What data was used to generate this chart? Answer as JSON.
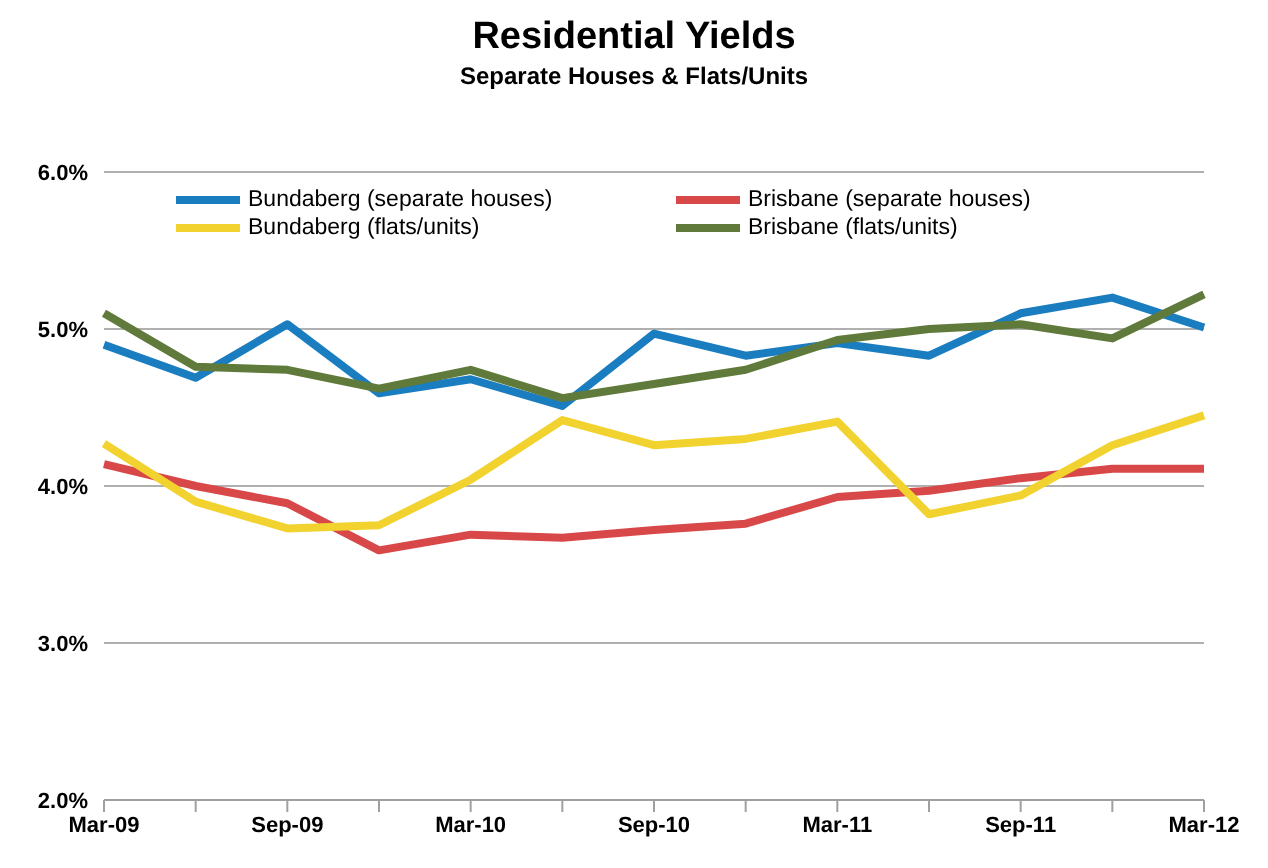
{
  "chart_data": {
    "type": "line",
    "title": "Residential Yields",
    "subtitle": "Separate Houses & Flats/Units",
    "categories": [
      "Mar-09",
      null,
      "Sep-09",
      null,
      "Mar-10",
      null,
      "Sep-10",
      null,
      "Mar-11",
      null,
      "Sep-11",
      null,
      "Mar-12"
    ],
    "series": [
      {
        "name": "Bundaberg (separate houses)",
        "color": "#1a7dc0",
        "values": [
          4.9,
          4.69,
          5.03,
          4.59,
          4.68,
          4.51,
          4.97,
          4.83,
          4.91,
          4.83,
          5.1,
          5.2,
          5.01
        ]
      },
      {
        "name": "Brisbane (separate houses)",
        "color": "#d94848",
        "values": [
          4.14,
          4.0,
          3.89,
          3.59,
          3.69,
          3.67,
          3.72,
          3.76,
          3.93,
          3.97,
          4.05,
          4.11,
          4.11
        ]
      },
      {
        "name": "Bundaberg (flats/units)",
        "color": "#f2d22e",
        "values": [
          4.27,
          3.9,
          3.73,
          3.75,
          4.04,
          4.42,
          4.26,
          4.3,
          4.41,
          3.82,
          3.94,
          4.26,
          4.45
        ]
      },
      {
        "name": "Brisbane (flats/units)",
        "color": "#5f7a3a",
        "values": [
          5.1,
          4.76,
          4.74,
          4.62,
          4.74,
          4.56,
          4.65,
          4.74,
          4.93,
          5.0,
          5.03,
          4.94,
          5.22
        ]
      }
    ],
    "ylim": [
      2,
      6
    ],
    "yticks": [
      {
        "value": 2,
        "label": "2.0%"
      },
      {
        "value": 3,
        "label": "3.0%"
      },
      {
        "value": 4,
        "label": "4.0%"
      },
      {
        "value": 5,
        "label": "5.0%"
      },
      {
        "value": 6,
        "label": "6.0%"
      }
    ],
    "grid": "y",
    "legend": "top",
    "marker": "none",
    "line_style": "solid"
  }
}
